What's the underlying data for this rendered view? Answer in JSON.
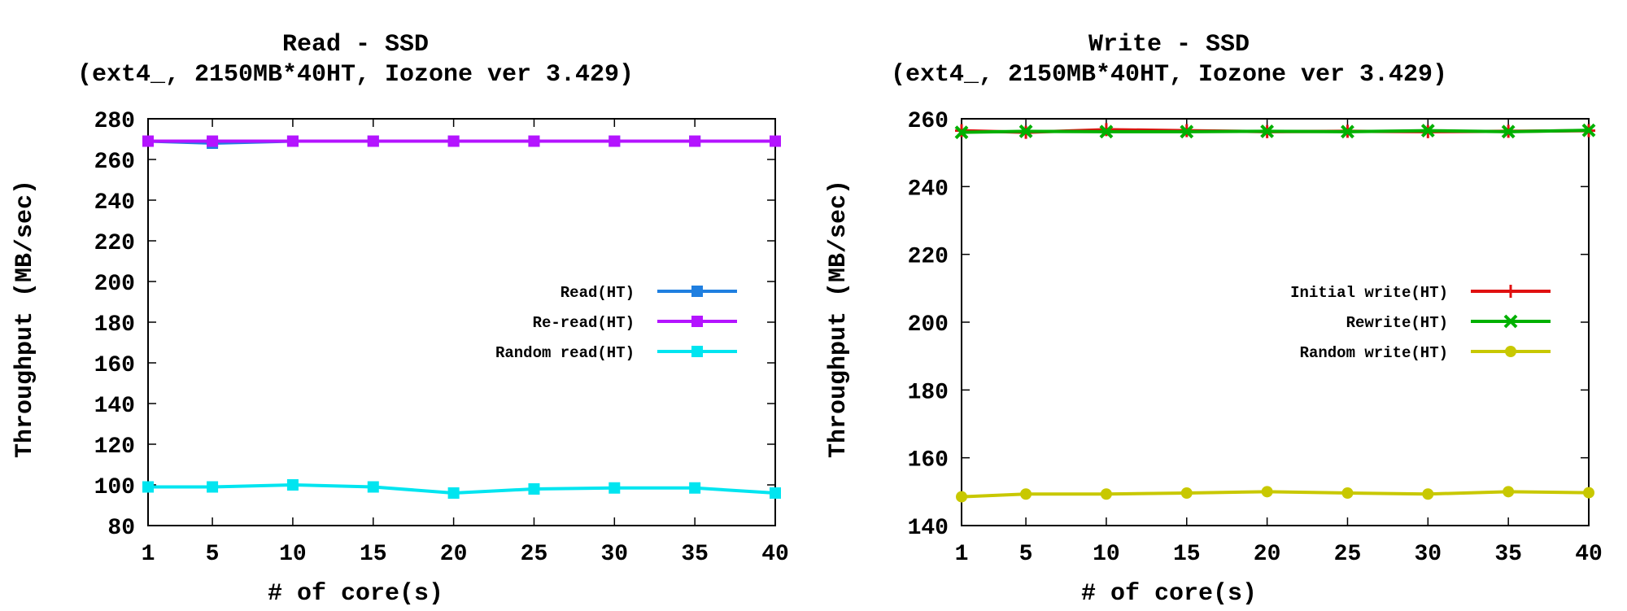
{
  "chart_data": [
    {
      "type": "line",
      "title": "Read - SSD",
      "subtitle": "(ext4_, 2150MB*40HT, Iozone ver 3.429)",
      "xlabel": "# of core(s)",
      "ylabel": "Throughput (MB/sec)",
      "x": [
        1,
        5,
        10,
        15,
        20,
        25,
        30,
        35,
        40
      ],
      "xlim": [
        1,
        40
      ],
      "ylim": [
        80,
        280
      ],
      "xticks": [
        "1",
        "5",
        "10",
        "15",
        "20",
        "25",
        "30",
        "35",
        "40"
      ],
      "yticks": [
        "80",
        "100",
        "120",
        "140",
        "160",
        "180",
        "200",
        "220",
        "240",
        "260",
        "280"
      ],
      "grid": false,
      "legend_position": "right",
      "series": [
        {
          "name": "Read(HT)",
          "color": "#1f7fe0",
          "marker": "square",
          "values": [
            269,
            268,
            269,
            269,
            269,
            269,
            269,
            269,
            269
          ]
        },
        {
          "name": "Re-read(HT)",
          "color": "#b414ff",
          "marker": "square",
          "values": [
            269,
            269,
            269,
            269,
            269,
            269,
            269,
            269,
            269
          ]
        },
        {
          "name": "Random read(HT)",
          "color": "#00e5f0",
          "marker": "square",
          "values": [
            99,
            99,
            100,
            99,
            96,
            98,
            98.5,
            98.5,
            96
          ]
        }
      ]
    },
    {
      "type": "line",
      "title": "Write - SSD",
      "subtitle": "(ext4_, 2150MB*40HT, Iozone ver 3.429)",
      "xlabel": "# of core(s)",
      "ylabel": "Throughput (MB/sec)",
      "x": [
        1,
        5,
        10,
        15,
        20,
        25,
        30,
        35,
        40
      ],
      "xlim": [
        1,
        40
      ],
      "ylim": [
        140,
        260
      ],
      "xticks": [
        "1",
        "5",
        "10",
        "15",
        "20",
        "25",
        "30",
        "35",
        "40"
      ],
      "yticks": [
        "140",
        "160",
        "180",
        "200",
        "220",
        "240",
        "260"
      ],
      "grid": false,
      "legend_position": "right",
      "series": [
        {
          "name": "Initial write(HT)",
          "color": "#e01010",
          "marker": "plus",
          "values": [
            256.5,
            256,
            256.8,
            256.5,
            256.2,
            256.3,
            256.2,
            256.3,
            256.5
          ]
        },
        {
          "name": "Rewrite(HT)",
          "color": "#00b000",
          "marker": "x",
          "values": [
            256,
            256.3,
            256.2,
            256.2,
            256.3,
            256.2,
            256.5,
            256.2,
            256.6
          ]
        },
        {
          "name": "Random write(HT)",
          "color": "#c8c800",
          "marker": "circle",
          "values": [
            148.5,
            149.3,
            149.3,
            149.6,
            150,
            149.6,
            149.3,
            150,
            149.7
          ]
        }
      ]
    }
  ]
}
